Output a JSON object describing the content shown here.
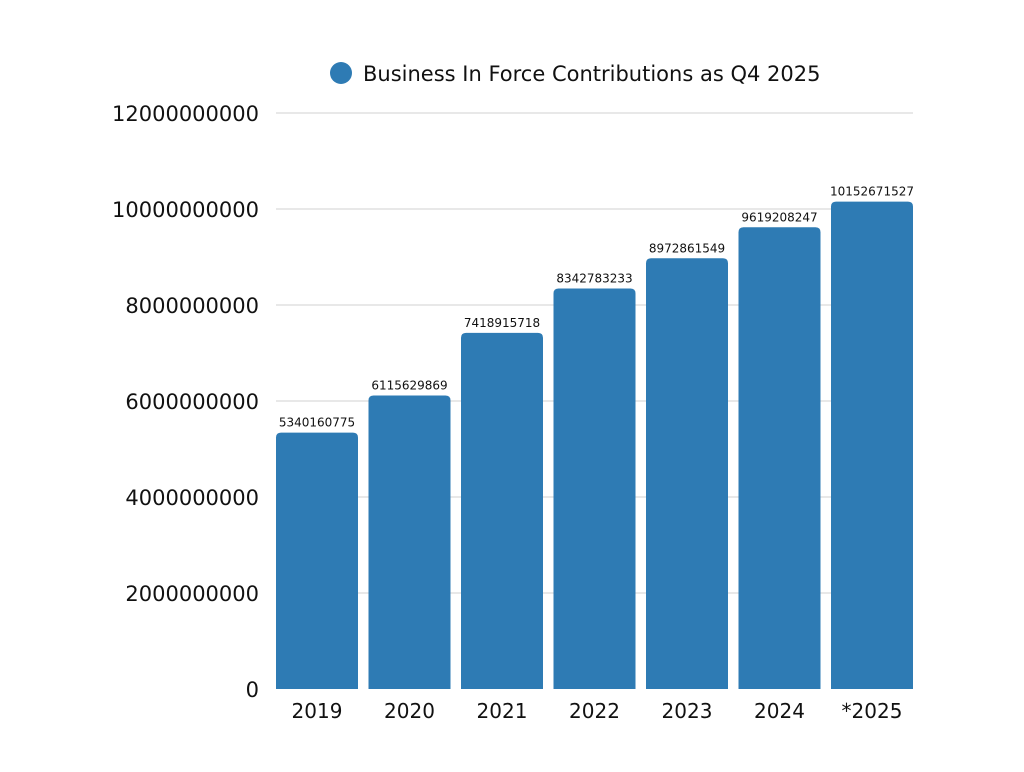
{
  "chart_data": {
    "type": "bar",
    "title": "",
    "legend": {
      "label": "Business In Force Contributions as Q4 2025",
      "position": "top"
    },
    "categories": [
      "2019",
      "2020",
      "2021",
      "2022",
      "2023",
      "2024",
      "*2025"
    ],
    "series": [
      {
        "name": "Business In Force Contributions as Q4 2025",
        "color": "#2e7bb4",
        "values": [
          5340160775,
          6115629869,
          7418915718,
          8342783233,
          8972861549,
          9619208247,
          10152671527
        ]
      }
    ],
    "data_labels": [
      "5340160775",
      "6115629869",
      "7418915718",
      "8342783233",
      "8972861549",
      "9619208247",
      "10152671527"
    ],
    "y_ticks": [
      0,
      2000000000,
      4000000000,
      6000000000,
      8000000000,
      10000000000,
      12000000000
    ],
    "y_tick_labels": [
      "0",
      "2000000000",
      "4000000000",
      "6000000000",
      "8000000000",
      "10000000000",
      "12000000000"
    ],
    "ylim": [
      0,
      12000000000
    ],
    "xlabel": "",
    "ylabel": "",
    "grid": true
  }
}
